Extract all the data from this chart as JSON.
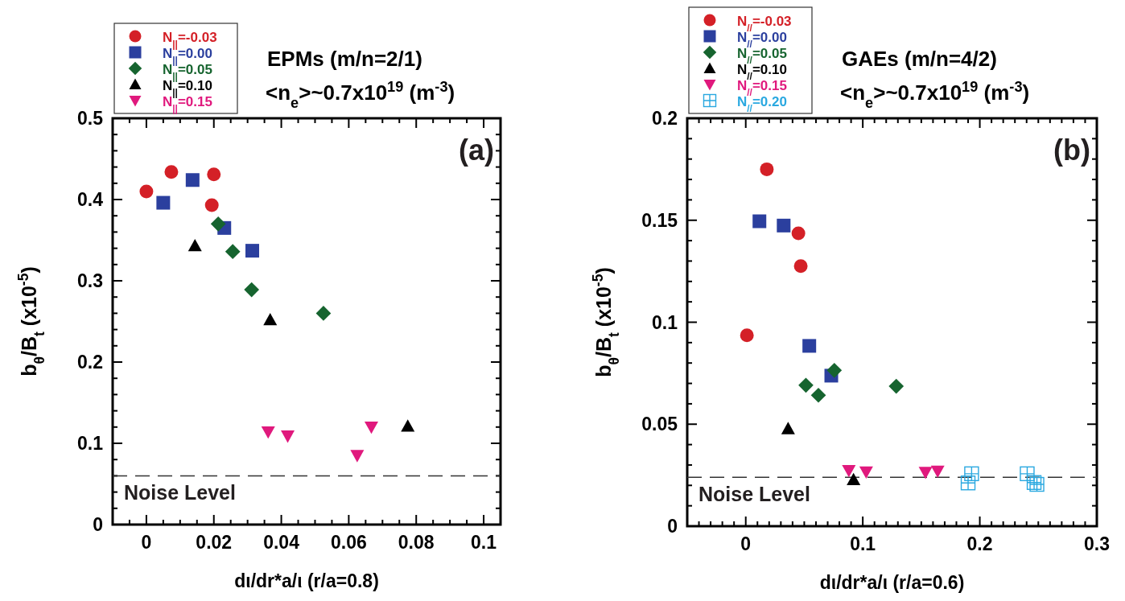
{
  "chart_data": [
    {
      "type": "scatter",
      "title": "EPMs (m/n=2/1)",
      "subtitle": "<n$_{e}$>~0.7x10$^{19}$ (m$^{-3}$)",
      "xlabel": "dι/dr*a/ι (r/a=0.8)",
      "ylabel": "b$_{θ}$/B$_{t}$ (x10$^{-5}$)",
      "legend": "top left",
      "annotations": [
        "(a)"
      ],
      "xlim": [
        -0.01,
        0.105
      ],
      "ylim": [
        0,
        0.5
      ],
      "xticks": [
        {
          "value": -0.01,
          "label": null
        },
        {
          "value": -0.005,
          "label": null
        },
        0,
        {
          "value": 0.005,
          "label": null
        },
        {
          "value": 0.01,
          "label": null
        },
        {
          "value": 0.015,
          "label": null
        },
        0.02,
        {
          "value": 0.025,
          "label": null
        },
        {
          "value": 0.03,
          "label": null
        },
        {
          "value": 0.035,
          "label": null
        },
        0.04,
        {
          "value": 0.045,
          "label": null
        },
        {
          "value": 0.05,
          "label": null
        },
        {
          "value": 0.055,
          "label": null
        },
        0.06,
        {
          "value": 0.065,
          "label": null
        },
        {
          "value": 0.07,
          "label": null
        },
        {
          "value": 0.075,
          "label": null
        },
        0.08,
        {
          "value": 0.085,
          "label": null
        },
        {
          "value": 0.09,
          "label": null
        },
        {
          "value": 0.095,
          "label": null
        },
        0.1,
        {
          "value": 0.105,
          "label": null
        }
      ],
      "yticks": [
        0,
        {
          "value": 0.02,
          "label": null
        },
        {
          "value": 0.04,
          "label": null
        },
        {
          "value": 0.06,
          "label": null
        },
        {
          "value": 0.08,
          "label": null
        },
        0.1,
        {
          "value": 0.12,
          "label": null
        },
        {
          "value": 0.14,
          "label": null
        },
        {
          "value": 0.16,
          "label": null
        },
        {
          "value": 0.18,
          "label": null
        },
        0.2,
        {
          "value": 0.22,
          "label": null
        },
        {
          "value": 0.24,
          "label": null
        },
        {
          "value": 0.26,
          "label": null
        },
        {
          "value": 0.28,
          "label": null
        },
        0.3,
        {
          "value": 0.32,
          "label": null
        },
        {
          "value": 0.34,
          "label": null
        },
        {
          "value": 0.36,
          "label": null
        },
        {
          "value": 0.38,
          "label": null
        },
        0.4,
        {
          "value": 0.42,
          "label": null
        },
        {
          "value": 0.44,
          "label": null
        },
        {
          "value": 0.46,
          "label": null
        },
        {
          "value": 0.48,
          "label": null
        },
        0.5
      ],
      "ref_lines": [
        {
          "axis": "y",
          "value": 0.06,
          "label": "Noise Level",
          "color": "#333333",
          "line_style": "dashed"
        }
      ],
      "series": [
        {
          "name": "N$_{||}$=-0.03",
          "color": "#d42027",
          "marker": "circle",
          "x": [
            0.0,
            0.0074,
            0.02,
            0.0194
          ],
          "values": [
            0.41,
            0.434,
            0.431,
            0.393
          ]
        },
        {
          "name": "N$_{||}$=0.00",
          "color": "#2b3f9e",
          "marker": "square",
          "x": [
            0.005,
            0.0137,
            0.0231,
            0.0314
          ],
          "values": [
            0.396,
            0.424,
            0.365,
            0.337
          ]
        },
        {
          "name": "N$_{||}$=0.05",
          "color": "#16642f",
          "marker": "diamond",
          "x": [
            0.0213,
            0.0256,
            0.0312,
            0.0525
          ],
          "values": [
            0.37,
            0.336,
            0.289,
            0.26
          ]
        },
        {
          "name": "N$_{||}$=0.10",
          "color": "#000000",
          "marker": "triangle",
          "x": [
            0.0144,
            0.0367,
            0.0775
          ],
          "values": [
            0.343,
            0.252,
            0.121
          ]
        },
        {
          "name": "N$_{||}$=0.15",
          "color": "#e0197d",
          "marker": "triangle-down",
          "x": [
            0.0361,
            0.0419,
            0.0625,
            0.0667
          ],
          "values": [
            0.114,
            0.109,
            0.085,
            0.12
          ]
        }
      ]
    },
    {
      "type": "scatter",
      "title": "GAEs (m/n=4/2)",
      "subtitle": "<n$_{e}$>~0.7x10$^{19}$ (m$^{-3}$)",
      "xlabel": "dι/dr*a/ι (r/a=0.6)",
      "ylabel": "b$_{θ}$/B$_{t}$ (x10$^{-5}$)",
      "legend": "top left",
      "annotations": [
        "(b)"
      ],
      "xlim": [
        -0.05,
        0.3
      ],
      "ylim": [
        0,
        0.2
      ],
      "xticks": [
        {
          "value": -0.05,
          "label": null
        },
        {
          "value": -0.04,
          "label": null
        },
        {
          "value": -0.03,
          "label": null
        },
        {
          "value": -0.02,
          "label": null
        },
        {
          "value": -0.01,
          "label": null
        },
        0,
        {
          "value": 0.01,
          "label": null
        },
        {
          "value": 0.02,
          "label": null
        },
        {
          "value": 0.03,
          "label": null
        },
        {
          "value": 0.04,
          "label": null
        },
        {
          "value": 0.05,
          "label": null
        },
        {
          "value": 0.06,
          "label": null
        },
        {
          "value": 0.07,
          "label": null
        },
        {
          "value": 0.08,
          "label": null
        },
        {
          "value": 0.09,
          "label": null
        },
        0.1,
        {
          "value": 0.11,
          "label": null
        },
        {
          "value": 0.12,
          "label": null
        },
        {
          "value": 0.13,
          "label": null
        },
        {
          "value": 0.14,
          "label": null
        },
        {
          "value": 0.15,
          "label": null
        },
        {
          "value": 0.16,
          "label": null
        },
        {
          "value": 0.17,
          "label": null
        },
        {
          "value": 0.18,
          "label": null
        },
        {
          "value": 0.19,
          "label": null
        },
        0.2,
        {
          "value": 0.21,
          "label": null
        },
        {
          "value": 0.22,
          "label": null
        },
        {
          "value": 0.23,
          "label": null
        },
        {
          "value": 0.24,
          "label": null
        },
        {
          "value": 0.25,
          "label": null
        },
        {
          "value": 0.26,
          "label": null
        },
        {
          "value": 0.27,
          "label": null
        },
        {
          "value": 0.28,
          "label": null
        },
        {
          "value": 0.29,
          "label": null
        },
        0.3
      ],
      "yticks": [
        0,
        {
          "value": 0.01,
          "label": null
        },
        {
          "value": 0.02,
          "label": null
        },
        {
          "value": 0.03,
          "label": null
        },
        {
          "value": 0.04,
          "label": null
        },
        0.05,
        {
          "value": 0.06,
          "label": null
        },
        {
          "value": 0.07,
          "label": null
        },
        {
          "value": 0.08,
          "label": null
        },
        {
          "value": 0.09,
          "label": null
        },
        0.1,
        {
          "value": 0.11,
          "label": null
        },
        {
          "value": 0.12,
          "label": null
        },
        {
          "value": 0.13,
          "label": null
        },
        {
          "value": 0.14,
          "label": null
        },
        0.15,
        {
          "value": 0.16,
          "label": null
        },
        {
          "value": 0.17,
          "label": null
        },
        {
          "value": 0.18,
          "label": null
        },
        {
          "value": 0.19,
          "label": null
        },
        0.2
      ],
      "ref_lines": [
        {
          "axis": "y",
          "value": 0.024,
          "label": "Noise Level",
          "color": "#333333",
          "line_style": "dashed"
        }
      ],
      "series": [
        {
          "name": "N$_{//}$=-0.03",
          "color": "#d42027",
          "marker": "circle",
          "x": [
            0.018,
            0.045,
            0.047,
            0.001
          ],
          "values": [
            0.175,
            0.1436,
            0.1275,
            0.0936
          ]
        },
        {
          "name": "N$_{//}$=0.00",
          "color": "#2b3f9e",
          "marker": "square",
          "x": [
            0.0117,
            0.0324,
            0.0543,
            0.0731
          ],
          "values": [
            0.1495,
            0.1474,
            0.0884,
            0.0738
          ]
        },
        {
          "name": "N$_{//}$=0.05",
          "color": "#16642f",
          "marker": "diamond",
          "x": [
            0.0514,
            0.0621,
            0.0757,
            0.1286
          ],
          "values": [
            0.0691,
            0.0642,
            0.0764,
            0.0686
          ]
        },
        {
          "name": "N$_{//}$=0.10",
          "color": "#000000",
          "marker": "triangle",
          "x": [
            0.0362,
            0.0921
          ],
          "values": [
            0.0478,
            0.0228
          ]
        },
        {
          "name": "N$_{//}$=0.15",
          "color": "#e0197d",
          "marker": "triangle-down",
          "x": [
            0.0881,
            0.1029,
            0.1536,
            0.164
          ],
          "values": [
            0.0273,
            0.0266,
            0.0264,
            0.027
          ]
        },
        {
          "name": "N$_{//}$=0.20",
          "color": "#29a8e0",
          "marker": "square-open",
          "x": [
            0.193,
            0.19,
            0.2405,
            0.2464,
            0.2488
          ],
          "values": [
            0.0257,
            0.0212,
            0.0257,
            0.0214,
            0.0205
          ]
        }
      ]
    }
  ]
}
